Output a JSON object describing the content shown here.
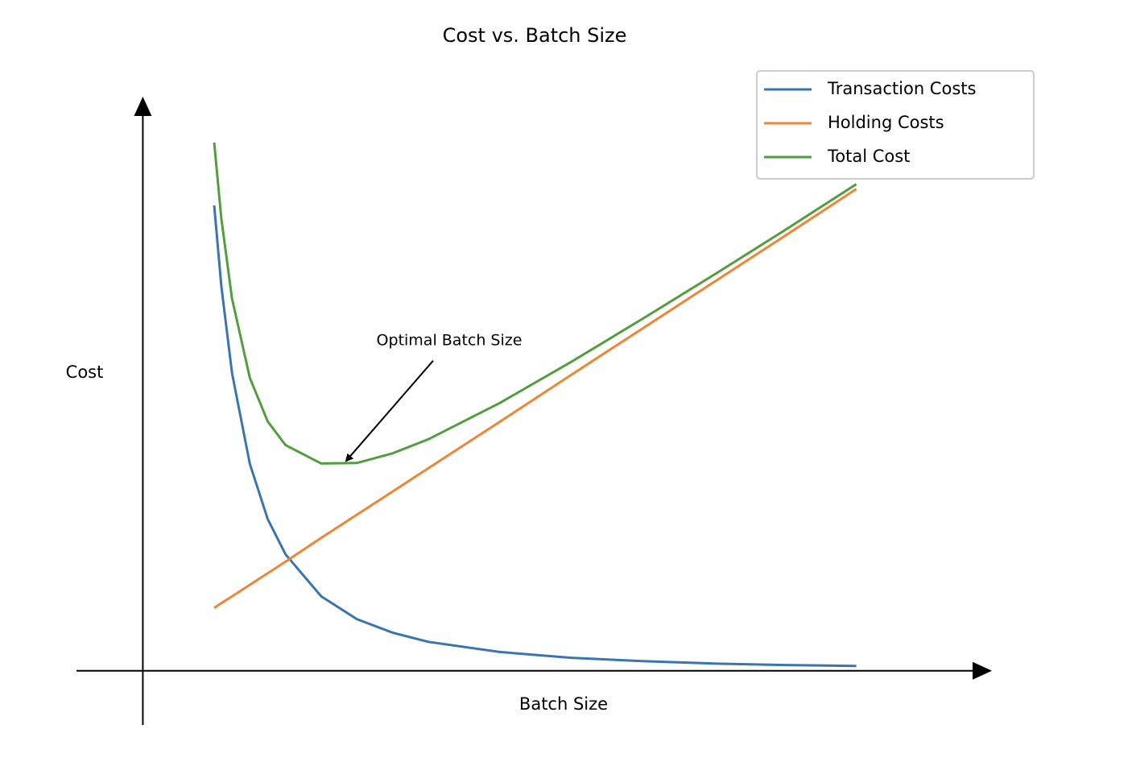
{
  "chart_data": {
    "type": "line",
    "title": "Cost vs. Batch Size",
    "xlabel": "Batch Size",
    "ylabel": "Cost",
    "x": [
      1,
      1.1,
      1.25,
      1.5,
      1.75,
      2,
      2.5,
      3,
      3.5,
      4,
      5,
      6,
      7,
      8,
      9,
      10
    ],
    "series": [
      {
        "name": "Transaction Costs",
        "color": "#3a75af",
        "values": [
          9.63,
          7.96,
          6.16,
          4.28,
          3.14,
          2.41,
          1.54,
          1.07,
          0.79,
          0.6,
          0.39,
          0.27,
          0.2,
          0.15,
          0.12,
          0.1
        ]
      },
      {
        "name": "Holding Costs",
        "color": "#ef8636",
        "values": [
          1.3,
          1.4,
          1.54,
          1.78,
          2.02,
          2.26,
          2.75,
          3.23,
          3.71,
          4.19,
          5.15,
          6.12,
          7.08,
          8.04,
          9.0,
          9.97
        ]
      },
      {
        "name": "Total Cost",
        "color": "#519e3e",
        "values": [
          10.93,
          9.36,
          7.7,
          6.06,
          5.16,
          4.67,
          4.29,
          4.3,
          4.5,
          4.79,
          5.54,
          6.39,
          7.28,
          8.19,
          9.12,
          10.07
        ]
      }
    ],
    "annotation": {
      "text": "Optimal Batch Size",
      "x": 2.85,
      "y": 4.35
    },
    "xlim": [
      -0.93,
      11.9
    ],
    "ylim": [
      -1.12,
      11.88
    ],
    "legend": "upper right",
    "grid": false
  }
}
